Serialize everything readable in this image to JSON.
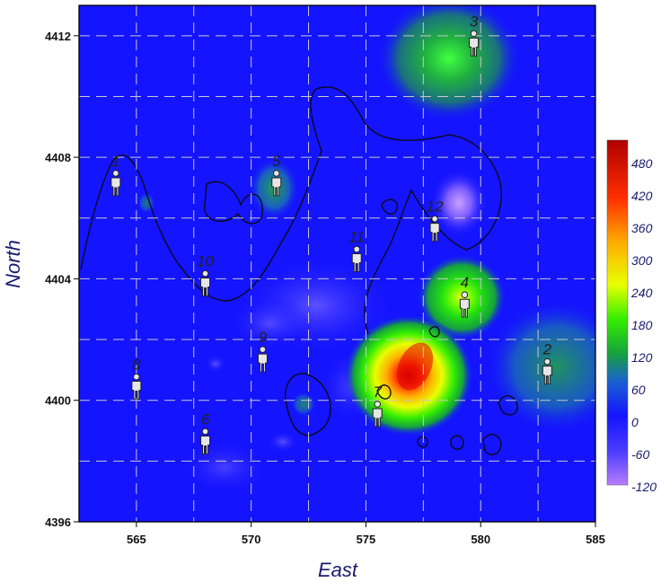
{
  "chart_data": {
    "type": "heatmap",
    "xlabel": "East",
    "ylabel": "North",
    "xlim": [
      562.5,
      585
    ],
    "ylim": [
      4396,
      4413
    ],
    "x_ticks": [
      565,
      570,
      575,
      580,
      585
    ],
    "y_ticks": [
      4396,
      4400,
      4404,
      4408,
      4412
    ],
    "grid": true,
    "colorbar": {
      "ticks": [
        480,
        420,
        360,
        300,
        240,
        180,
        120,
        60,
        0,
        -60,
        -120
      ],
      "range": [
        -140,
        500
      ],
      "colors": [
        "#b87cff",
        "#4a3cff",
        "#1414ff",
        "#1a60d0",
        "#16a040",
        "#33ee00",
        "#e8ff00",
        "#ffb000",
        "#ff3000",
        "#b00000"
      ]
    },
    "points": [
      {
        "label": "1",
        "x": 564.1,
        "y": 4407.0
      },
      {
        "label": "2",
        "x": 582.9,
        "y": 4400.8
      },
      {
        "label": "3",
        "x": 579.7,
        "y": 4411.6
      },
      {
        "label": "4",
        "x": 579.3,
        "y": 4403.0
      },
      {
        "label": "5",
        "x": 571.1,
        "y": 4407.0
      },
      {
        "label": "6",
        "x": 568.0,
        "y": 4398.5
      },
      {
        "label": "7",
        "x": 575.5,
        "y": 4399.4
      },
      {
        "label": "8",
        "x": 565.0,
        "y": 4400.3
      },
      {
        "label": "9",
        "x": 570.5,
        "y": 4401.2
      },
      {
        "label": "10",
        "x": 568.0,
        "y": 4403.7
      },
      {
        "label": "11",
        "x": 574.6,
        "y": 4404.5
      },
      {
        "label": "12",
        "x": 578.0,
        "y": 4405.5
      }
    ],
    "anomalies": [
      {
        "x": 576.9,
        "y": 4400.8,
        "value": 480
      },
      {
        "x": 579.2,
        "y": 4403.2,
        "value": 190
      },
      {
        "x": 578.9,
        "y": 4411.2,
        "value": 140
      },
      {
        "x": 583.2,
        "y": 4400.9,
        "value": 70
      },
      {
        "x": 579.1,
        "y": 4406.5,
        "value": -80
      },
      {
        "x": 573.0,
        "y": 4403.0,
        "value": -50
      },
      {
        "x": 571.1,
        "y": 4407.0,
        "value": 60
      }
    ]
  }
}
